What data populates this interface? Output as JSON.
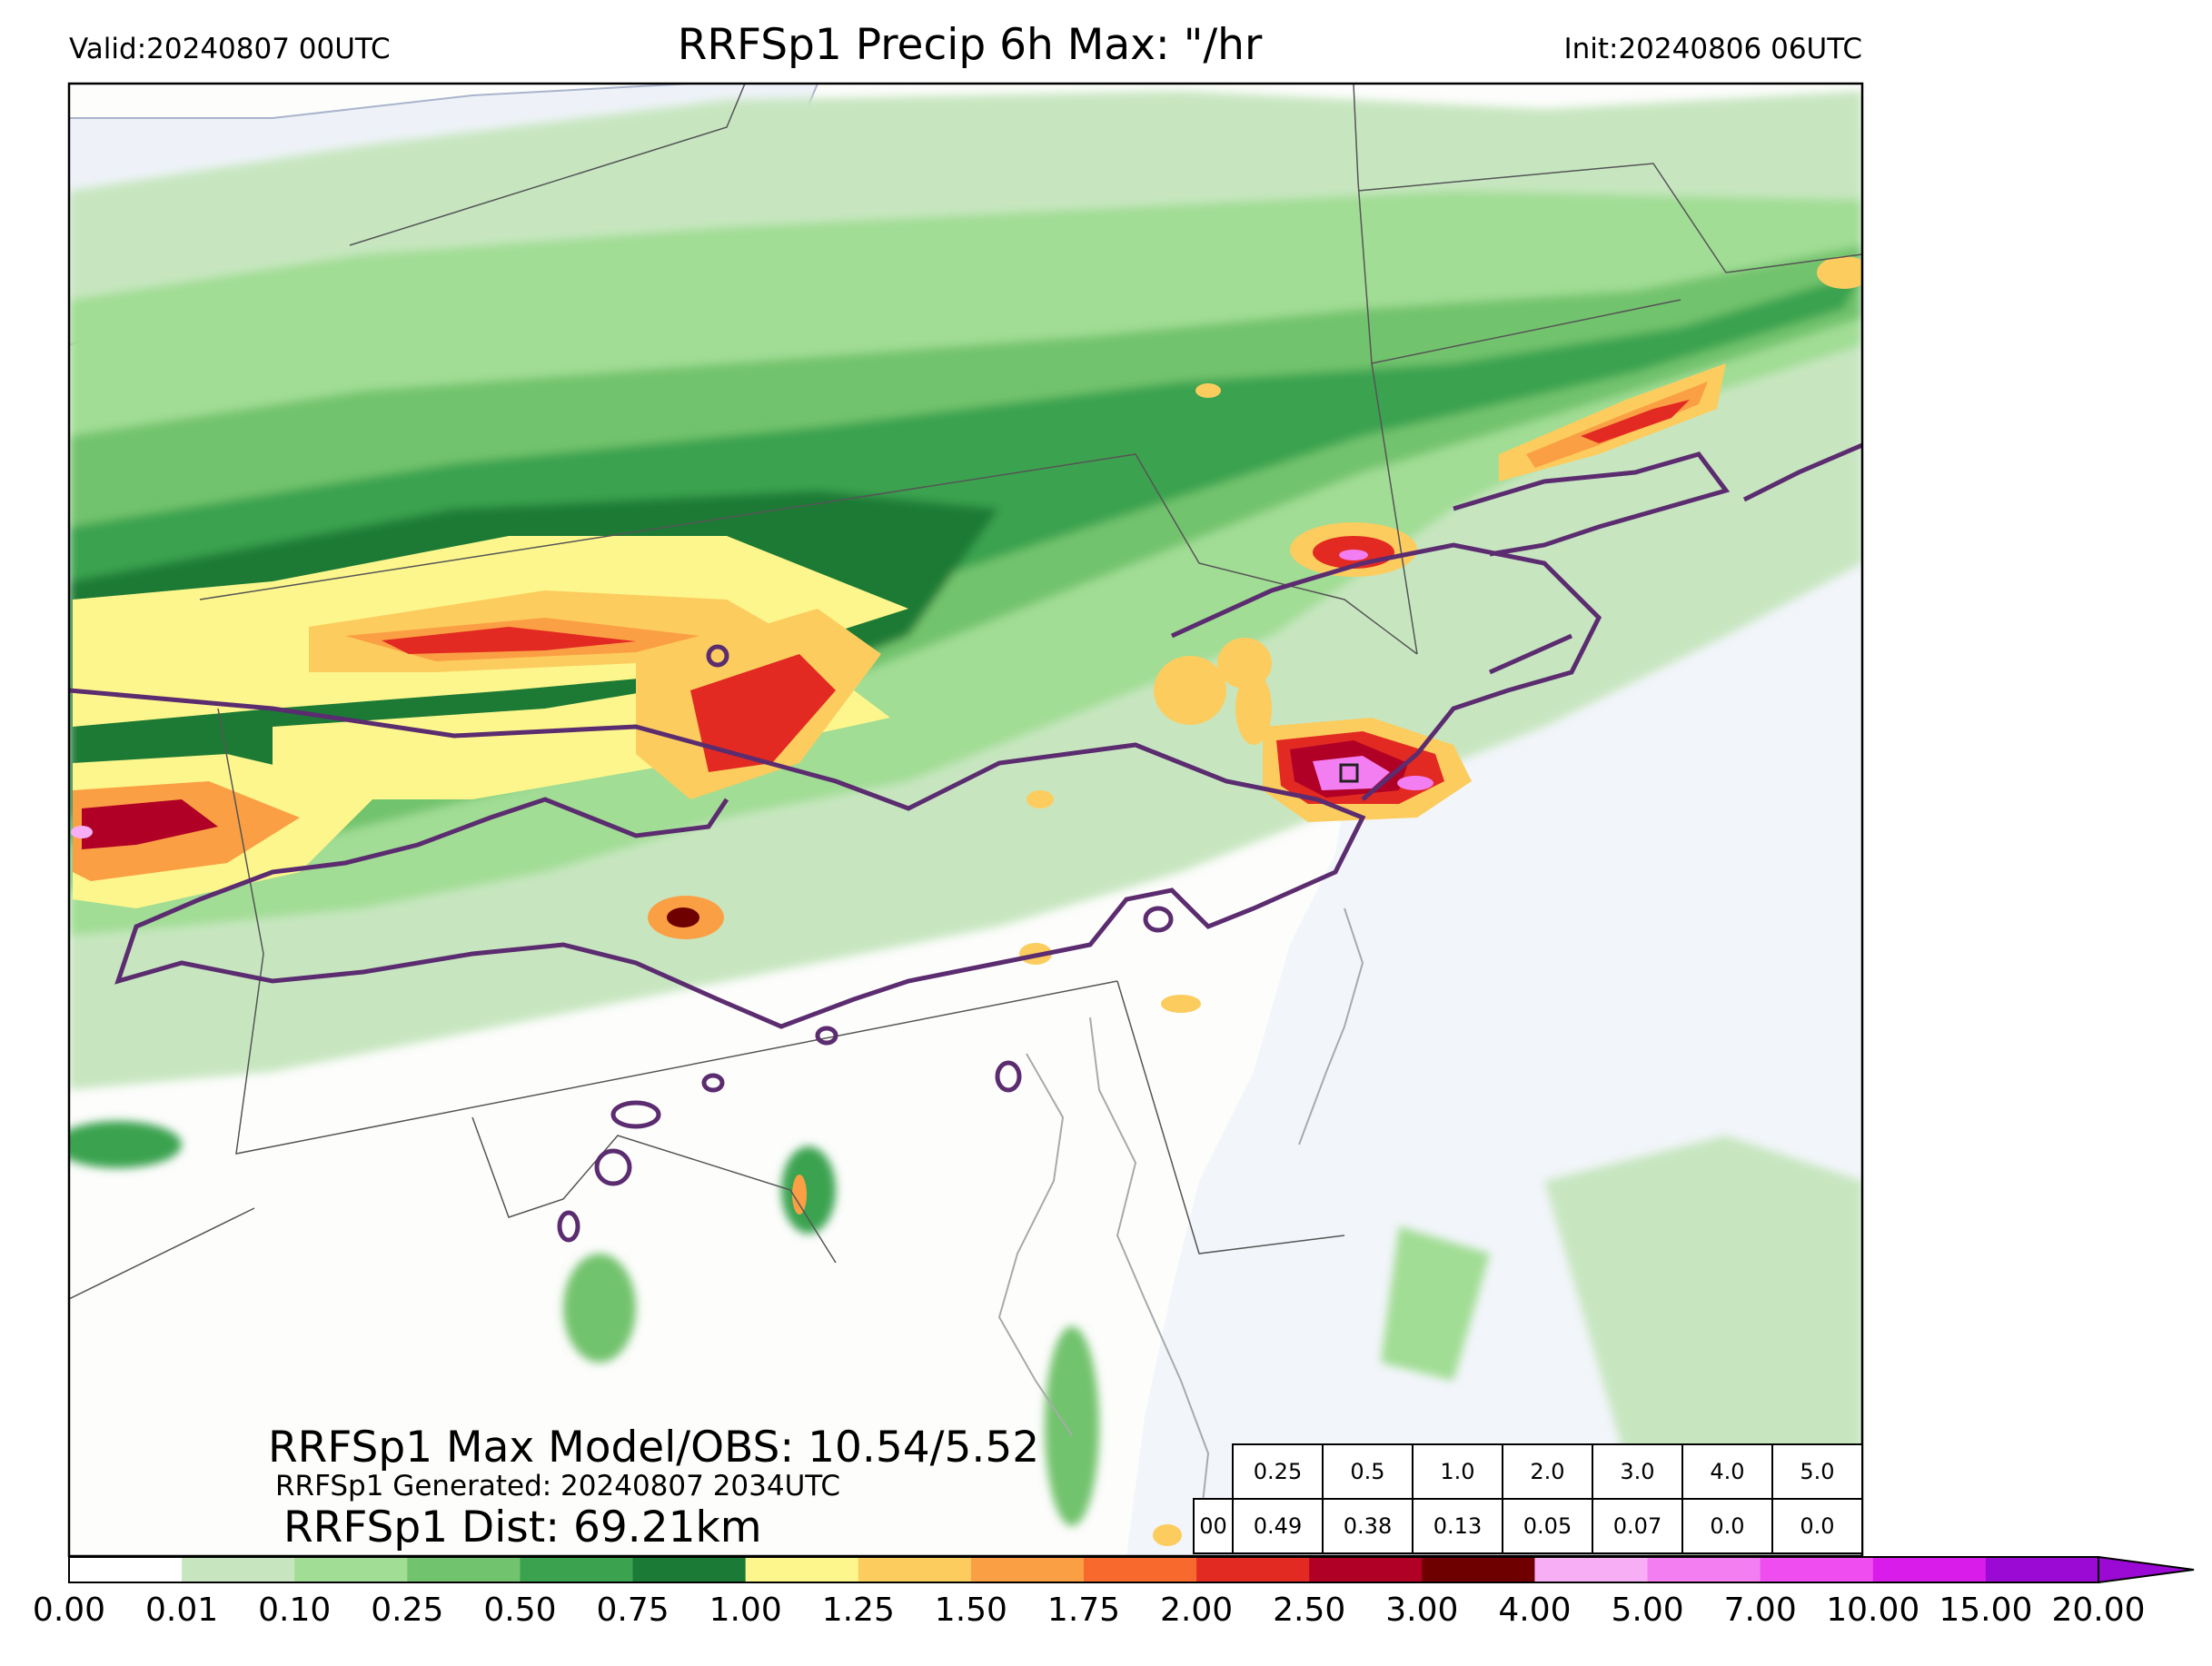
{
  "header": {
    "valid": "Valid:20240807 00UTC",
    "title": "RRFSp1 Precip 6h Max: \"/hr",
    "init": "Init:20240806 06UTC"
  },
  "stats": {
    "max_line": "RRFSp1 Max Model/OBS: 10.54/5.52",
    "generated_line": "RRFSp1 Generated: 20240807 2034UTC",
    "dist_line": "RRFSp1 Dist: 69.21km"
  },
  "threshold_table": {
    "thresholds": [
      "0.25",
      "0.5",
      "1.0",
      "2.0",
      "3.0",
      "4.0",
      "5.0"
    ],
    "row_label": "00",
    "values": [
      "0.49",
      "0.38",
      "0.13",
      "0.05",
      "0.07",
      "0.0",
      "0.0"
    ]
  },
  "colorbar": {
    "tick_labels": [
      "0.00",
      "0.01",
      "0.10",
      "0.25",
      "0.50",
      "0.75",
      "1.00",
      "1.25",
      "1.50",
      "1.75",
      "2.00",
      "2.50",
      "3.00",
      "4.00",
      "5.00",
      "7.00",
      "10.00",
      "15.00",
      "20.00"
    ],
    "colors": [
      "#ffffff",
      "#c7e6c0",
      "#a1dd94",
      "#72c36d",
      "#3ba350",
      "#1a7a36",
      "#fdf68c",
      "#fccc5e",
      "#fb9f44",
      "#f8692d",
      "#e22a22",
      "#b10026",
      "#6e0000",
      "#f8aef4",
      "#f27ef2",
      "#ef4df0",
      "#d91ce9",
      "#9b09d4"
    ],
    "extend": "max"
  },
  "colors": {
    "ocean": "#f2f5fa",
    "land": "#fdfdfc",
    "contour": "#5b2c6f"
  }
}
